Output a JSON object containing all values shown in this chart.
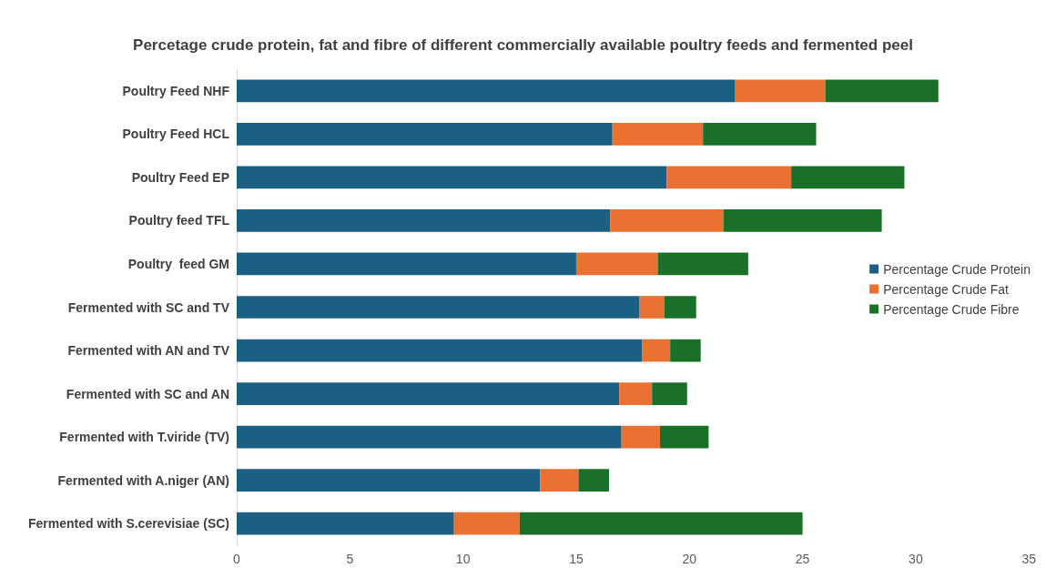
{
  "chart_data": {
    "type": "bar",
    "orientation": "horizontal",
    "stacked": true,
    "title": "Percetage crude protein, fat and fibre of different commercially available poultry feeds and fermented peel",
    "categories": [
      "Poultry Feed NHF",
      "Poultry Feed HCL",
      "Poultry Feed EP",
      "Poultry feed TFL",
      "Poultry  feed GM",
      "Fermented with SC and TV",
      "Fermented with AN and TV",
      "Fermented with SC and AN",
      "Fermented with T.viride (TV)",
      "Fermented with A.niger (AN)",
      "Fermented with S.cerevisiae (SC)"
    ],
    "series": [
      {
        "name": "Percentage Crude Protein",
        "color": "#1b5f82",
        "values": [
          22.0,
          16.6,
          19.0,
          16.5,
          15.0,
          17.8,
          17.9,
          16.9,
          17.0,
          13.4,
          9.6
        ]
      },
      {
        "name": "Percentage Crude Fat",
        "color": "#e97132",
        "values": [
          4.0,
          4.0,
          5.5,
          5.0,
          3.6,
          1.1,
          1.25,
          1.45,
          1.7,
          1.7,
          2.9
        ]
      },
      {
        "name": "Percentage Crude Fibre",
        "color": "#1b7029",
        "values": [
          5.0,
          5.0,
          5.0,
          7.0,
          4.0,
          1.4,
          1.35,
          1.55,
          2.15,
          1.35,
          12.5
        ]
      }
    ],
    "xlim": [
      0,
      35
    ],
    "xticks": [
      0,
      5,
      10,
      15,
      20,
      25,
      30,
      35
    ],
    "grid": false,
    "legend": "right"
  }
}
